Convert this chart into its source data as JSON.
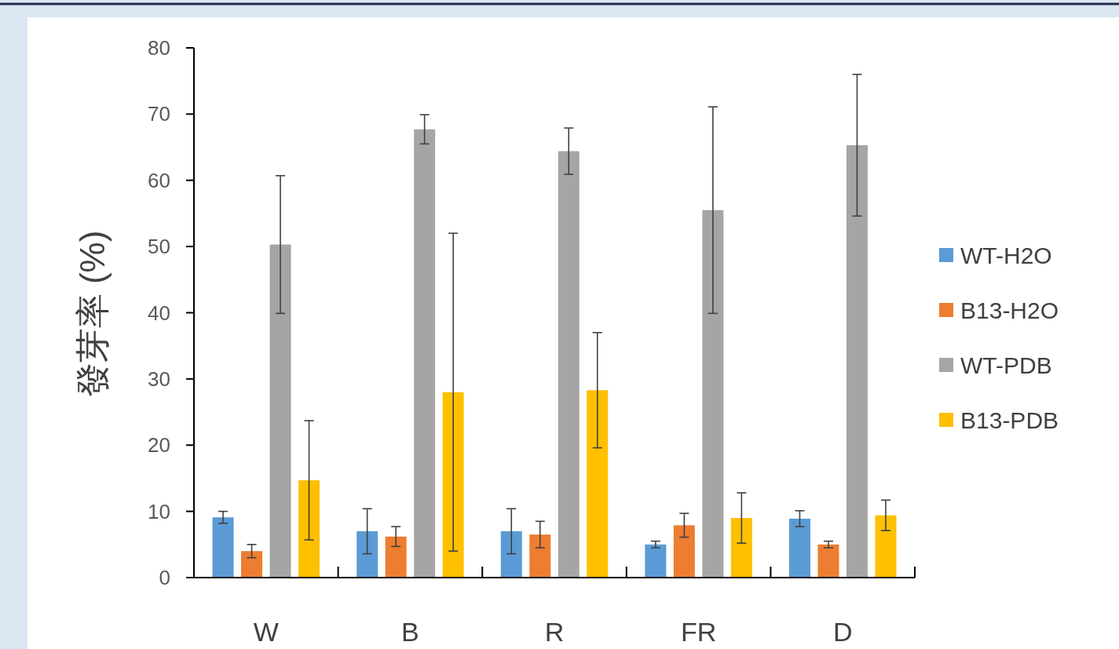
{
  "chart_data": {
    "type": "bar",
    "ylabel": "發芽率 (%)",
    "categories": [
      "W",
      "B",
      "R",
      "FR",
      "D"
    ],
    "series": [
      {
        "name": "WT-H2O",
        "color": "#5b9bd5",
        "values": [
          9.1,
          7.0,
          7.0,
          5.0,
          8.9
        ],
        "errors": [
          0.9,
          3.4,
          3.4,
          0.5,
          1.2
        ]
      },
      {
        "name": "B13-H2O",
        "color": "#ed7d31",
        "values": [
          4.0,
          6.2,
          6.5,
          7.9,
          5.0
        ],
        "errors": [
          1.0,
          1.5,
          2.0,
          1.8,
          0.5
        ]
      },
      {
        "name": "WT-PDB",
        "color": "#a5a5a5",
        "values": [
          50.3,
          67.7,
          64.4,
          55.5,
          65.3
        ],
        "errors": [
          10.4,
          2.2,
          3.5,
          15.6,
          10.7
        ]
      },
      {
        "name": "B13-PDB",
        "color": "#ffc000",
        "values": [
          14.7,
          28.0,
          28.3,
          9.0,
          9.4
        ],
        "errors": [
          9.0,
          24.0,
          8.7,
          3.8,
          2.3
        ]
      }
    ],
    "ylim": [
      0,
      80
    ],
    "yticks": [
      0,
      10,
      20,
      30,
      40,
      50,
      60,
      70,
      80
    ],
    "grid": false,
    "legend": "right"
  }
}
